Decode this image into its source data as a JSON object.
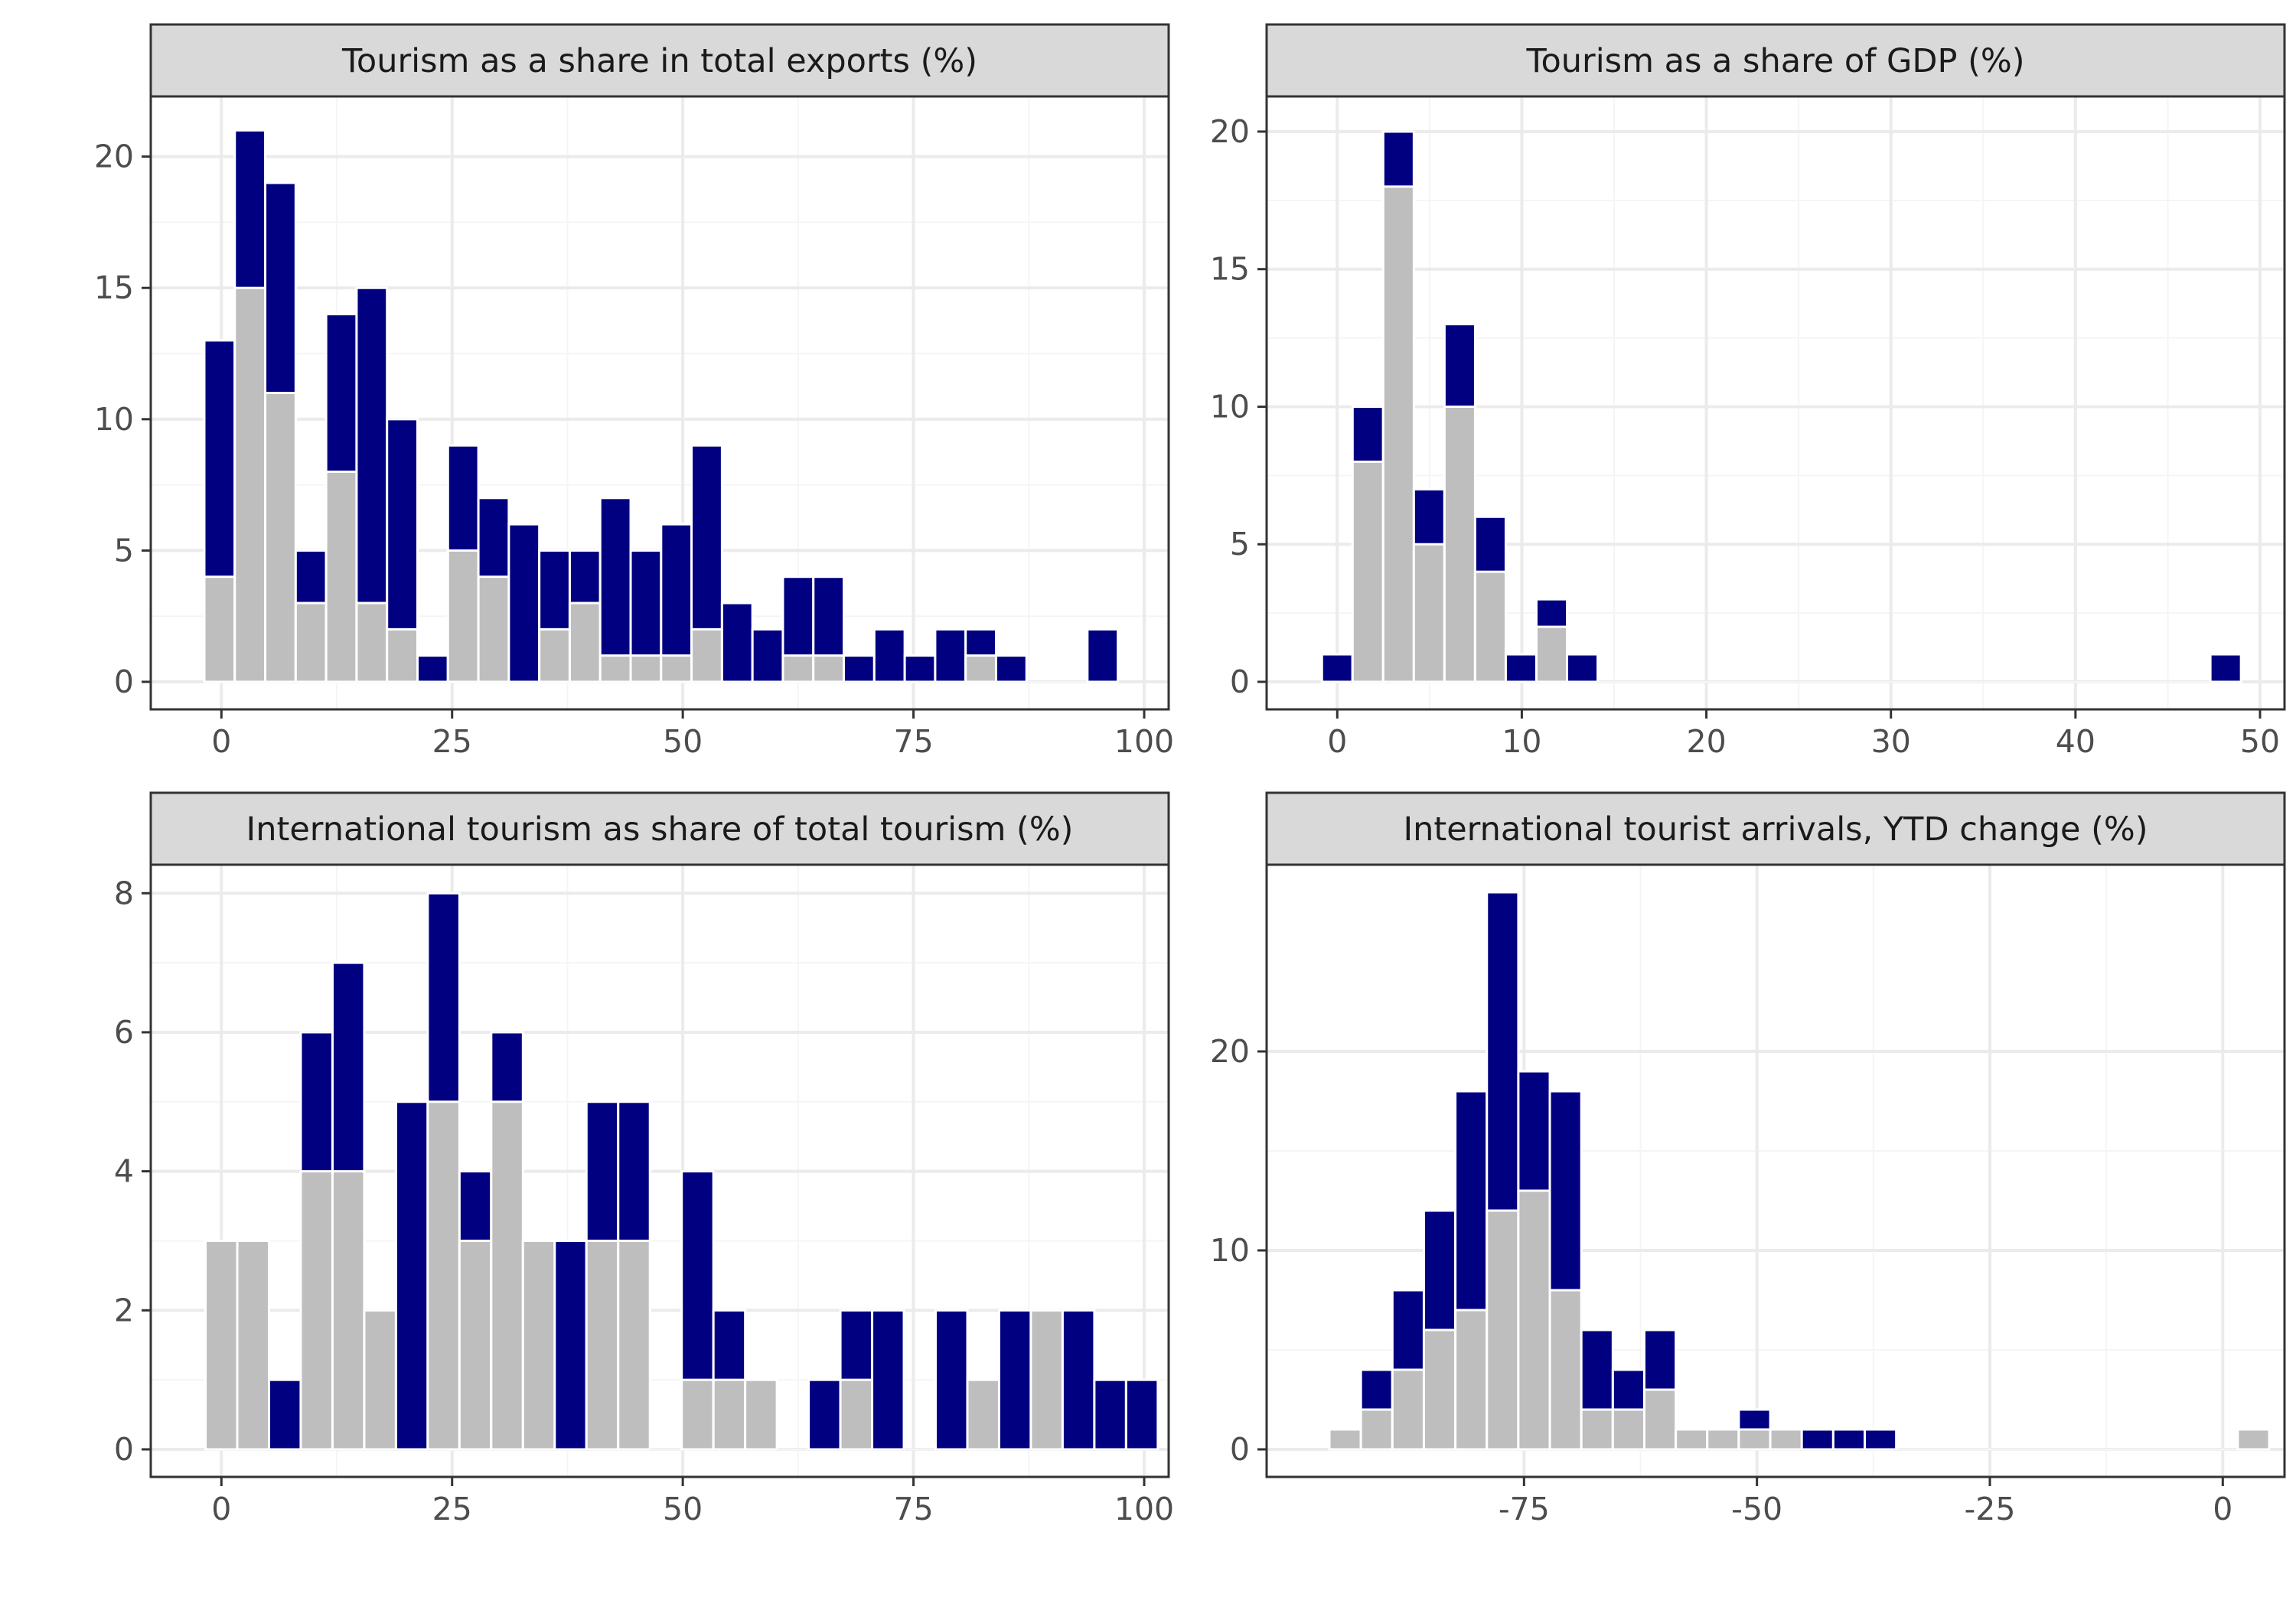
{
  "colors": {
    "total": "#000080",
    "subset": "#bebebe",
    "bar_outline": "#ffffff",
    "grid_major": "#ebebeb",
    "grid_minor": "#f5f5f5",
    "panel_border": "#333333",
    "strip_fill": "#d9d9d9"
  },
  "chart_data": [
    {
      "type": "bar",
      "title": "Tourism as a share in total exports (%)",
      "xlabel": "",
      "ylabel": "",
      "binwidth": 3.3,
      "x_ticks": [
        0,
        25,
        50,
        75,
        100
      ],
      "y_ticks": [
        0,
        5,
        10,
        15,
        20
      ],
      "xlim": [
        -5,
        100
      ],
      "ylim": [
        0,
        22
      ],
      "bins": [
        {
          "x": -0.2,
          "total": 13,
          "grey": 4
        },
        {
          "x": 3.1,
          "total": 21,
          "grey": 15
        },
        {
          "x": 6.4,
          "total": 19,
          "grey": 11
        },
        {
          "x": 9.7,
          "total": 5,
          "grey": 3
        },
        {
          "x": 13.0,
          "total": 14,
          "grey": 8
        },
        {
          "x": 16.3,
          "total": 15,
          "grey": 3
        },
        {
          "x": 19.6,
          "total": 10,
          "grey": 2
        },
        {
          "x": 22.9,
          "total": 1,
          "grey": 0
        },
        {
          "x": 26.2,
          "total": 9,
          "grey": 5
        },
        {
          "x": 29.5,
          "total": 7,
          "grey": 4
        },
        {
          "x": 32.8,
          "total": 6,
          "grey": 0
        },
        {
          "x": 36.1,
          "total": 5,
          "grey": 2
        },
        {
          "x": 39.4,
          "total": 5,
          "grey": 3
        },
        {
          "x": 42.7,
          "total": 7,
          "grey": 1
        },
        {
          "x": 46.0,
          "total": 5,
          "grey": 1
        },
        {
          "x": 49.3,
          "total": 6,
          "grey": 1
        },
        {
          "x": 52.6,
          "total": 9,
          "grey": 2
        },
        {
          "x": 55.9,
          "total": 3,
          "grey": 0
        },
        {
          "x": 59.2,
          "total": 2,
          "grey": 0
        },
        {
          "x": 62.5,
          "total": 4,
          "grey": 1
        },
        {
          "x": 65.8,
          "total": 4,
          "grey": 1
        },
        {
          "x": 69.1,
          "total": 1,
          "grey": 0
        },
        {
          "x": 72.4,
          "total": 2,
          "grey": 0
        },
        {
          "x": 75.7,
          "total": 1,
          "grey": 0
        },
        {
          "x": 79.0,
          "total": 2,
          "grey": 0
        },
        {
          "x": 82.3,
          "total": 2,
          "grey": 1
        },
        {
          "x": 85.6,
          "total": 1,
          "grey": 0
        },
        {
          "x": 88.9,
          "total": 0,
          "grey": 0
        },
        {
          "x": 92.2,
          "total": 0,
          "grey": 0
        },
        {
          "x": 95.5,
          "total": 2,
          "grey": 0
        }
      ]
    },
    {
      "type": "bar",
      "title": "Tourism as a share of GDP (%)",
      "xlabel": "",
      "ylabel": "",
      "binwidth": 1.66,
      "x_ticks": [
        0,
        10,
        20,
        30,
        40,
        50
      ],
      "y_ticks": [
        0,
        5,
        10,
        15,
        20
      ],
      "xlim": [
        -2.5,
        50
      ],
      "ylim": [
        0,
        21
      ],
      "bins": [
        {
          "x": 0.0,
          "total": 1,
          "grey": 0
        },
        {
          "x": 1.66,
          "total": 10,
          "grey": 8
        },
        {
          "x": 3.32,
          "total": 20,
          "grey": 18
        },
        {
          "x": 4.98,
          "total": 7,
          "grey": 5
        },
        {
          "x": 6.64,
          "total": 13,
          "grey": 10
        },
        {
          "x": 8.3,
          "total": 6,
          "grey": 4
        },
        {
          "x": 9.96,
          "total": 1,
          "grey": 0
        },
        {
          "x": 11.62,
          "total": 3,
          "grey": 2
        },
        {
          "x": 13.28,
          "total": 1,
          "grey": 0
        },
        {
          "x": 14.94,
          "total": 0,
          "grey": 0
        },
        {
          "x": 16.6,
          "total": 0,
          "grey": 0
        },
        {
          "x": 18.26,
          "total": 0,
          "grey": 0
        },
        {
          "x": 19.92,
          "total": 0,
          "grey": 0
        },
        {
          "x": 21.58,
          "total": 0,
          "grey": 0
        },
        {
          "x": 23.24,
          "total": 0,
          "grey": 0
        },
        {
          "x": 24.9,
          "total": 0,
          "grey": 0
        },
        {
          "x": 26.56,
          "total": 0,
          "grey": 0
        },
        {
          "x": 28.22,
          "total": 0,
          "grey": 0
        },
        {
          "x": 29.88,
          "total": 0,
          "grey": 0
        },
        {
          "x": 31.54,
          "total": 0,
          "grey": 0
        },
        {
          "x": 33.2,
          "total": 0,
          "grey": 0
        },
        {
          "x": 34.86,
          "total": 0,
          "grey": 0
        },
        {
          "x": 36.52,
          "total": 0,
          "grey": 0
        },
        {
          "x": 38.18,
          "total": 0,
          "grey": 0
        },
        {
          "x": 39.84,
          "total": 0,
          "grey": 0
        },
        {
          "x": 41.5,
          "total": 0,
          "grey": 0
        },
        {
          "x": 43.16,
          "total": 0,
          "grey": 0
        },
        {
          "x": 44.82,
          "total": 0,
          "grey": 0
        },
        {
          "x": 46.48,
          "total": 0,
          "grey": 0
        },
        {
          "x": 48.14,
          "total": 1,
          "grey": 0
        }
      ]
    },
    {
      "type": "bar",
      "title": "International tourism as share of total tourism (%)",
      "xlabel": "",
      "ylabel": "",
      "binwidth": 3.44,
      "x_ticks": [
        0,
        25,
        50,
        75,
        100
      ],
      "y_ticks": [
        0,
        2,
        4,
        6,
        8
      ],
      "xlim": [
        -5,
        100
      ],
      "ylim": [
        0,
        8.3
      ],
      "bins": [
        {
          "x": 0.0,
          "total": 3,
          "grey": 3
        },
        {
          "x": 3.44,
          "total": 3,
          "grey": 3
        },
        {
          "x": 6.88,
          "total": 1,
          "grey": 0
        },
        {
          "x": 10.32,
          "total": 6,
          "grey": 4
        },
        {
          "x": 13.76,
          "total": 7,
          "grey": 4
        },
        {
          "x": 17.2,
          "total": 2,
          "grey": 2
        },
        {
          "x": 20.64,
          "total": 5,
          "grey": 0
        },
        {
          "x": 24.08,
          "total": 8,
          "grey": 5
        },
        {
          "x": 27.52,
          "total": 4,
          "grey": 3
        },
        {
          "x": 30.96,
          "total": 6,
          "grey": 5
        },
        {
          "x": 34.4,
          "total": 3,
          "grey": 3
        },
        {
          "x": 37.84,
          "total": 3,
          "grey": 0
        },
        {
          "x": 41.28,
          "total": 5,
          "grey": 3
        },
        {
          "x": 44.72,
          "total": 5,
          "grey": 3
        },
        {
          "x": 48.16,
          "total": 0,
          "grey": 0
        },
        {
          "x": 51.6,
          "total": 4,
          "grey": 1
        },
        {
          "x": 55.04,
          "total": 2,
          "grey": 1
        },
        {
          "x": 58.48,
          "total": 1,
          "grey": 1
        },
        {
          "x": 61.92,
          "total": 0,
          "grey": 0
        },
        {
          "x": 65.36,
          "total": 1,
          "grey": 0
        },
        {
          "x": 68.8,
          "total": 2,
          "grey": 1
        },
        {
          "x": 72.24,
          "total": 2,
          "grey": 0
        },
        {
          "x": 75.68,
          "total": 0,
          "grey": 0
        },
        {
          "x": 79.12,
          "total": 2,
          "grey": 0
        },
        {
          "x": 82.56,
          "total": 1,
          "grey": 1
        },
        {
          "x": 86.0,
          "total": 2,
          "grey": 0
        },
        {
          "x": 89.44,
          "total": 2,
          "grey": 2
        },
        {
          "x": 92.88,
          "total": 2,
          "grey": 0
        },
        {
          "x": 96.32,
          "total": 1,
          "grey": 0
        },
        {
          "x": 99.76,
          "total": 1,
          "grey": 0
        }
      ]
    },
    {
      "type": "bar",
      "title": "International tourist arrivals, YTD change (%)",
      "xlabel": "",
      "ylabel": "",
      "binwidth": 3.38,
      "x_ticks": [
        -75,
        -50,
        -25,
        0
      ],
      "x_tick_labels": [
        "-75",
        "-50",
        "-25",
        "0"
      ],
      "y_ticks": [
        0,
        10,
        20
      ],
      "xlim": [
        -100,
        4
      ],
      "ylim": [
        0,
        29
      ],
      "bins": [
        {
          "x": -94.2,
          "total": 1,
          "grey": 1
        },
        {
          "x": -90.82,
          "total": 4,
          "grey": 2
        },
        {
          "x": -87.44,
          "total": 8,
          "grey": 4
        },
        {
          "x": -84.06,
          "total": 12,
          "grey": 6
        },
        {
          "x": -80.68,
          "total": 18,
          "grey": 7
        },
        {
          "x": -77.3,
          "total": 28,
          "grey": 12
        },
        {
          "x": -73.92,
          "total": 19,
          "grey": 13
        },
        {
          "x": -70.54,
          "total": 18,
          "grey": 8
        },
        {
          "x": -67.16,
          "total": 6,
          "grey": 2
        },
        {
          "x": -63.78,
          "total": 4,
          "grey": 2
        },
        {
          "x": -60.4,
          "total": 6,
          "grey": 3
        },
        {
          "x": -57.02,
          "total": 1,
          "grey": 1
        },
        {
          "x": -53.64,
          "total": 1,
          "grey": 1
        },
        {
          "x": -50.26,
          "total": 2,
          "grey": 1
        },
        {
          "x": -46.88,
          "total": 1,
          "grey": 1
        },
        {
          "x": -43.5,
          "total": 1,
          "grey": 0
        },
        {
          "x": -40.12,
          "total": 1,
          "grey": 0
        },
        {
          "x": -36.74,
          "total": 1,
          "grey": 0
        },
        {
          "x": -33.36,
          "total": 0,
          "grey": 0
        },
        {
          "x": -29.98,
          "total": 0,
          "grey": 0
        },
        {
          "x": -26.6,
          "total": 0,
          "grey": 0
        },
        {
          "x": -23.22,
          "total": 0,
          "grey": 0
        },
        {
          "x": -19.84,
          "total": 0,
          "grey": 0
        },
        {
          "x": -16.46,
          "total": 0,
          "grey": 0
        },
        {
          "x": -13.08,
          "total": 0,
          "grey": 0
        },
        {
          "x": -9.7,
          "total": 0,
          "grey": 0
        },
        {
          "x": -6.32,
          "total": 0,
          "grey": 0
        },
        {
          "x": -2.94,
          "total": 0,
          "grey": 0
        },
        {
          "x": 0.44,
          "total": 0,
          "grey": 0
        },
        {
          "x": 3.3,
          "total": 1,
          "grey": 1
        }
      ]
    }
  ]
}
